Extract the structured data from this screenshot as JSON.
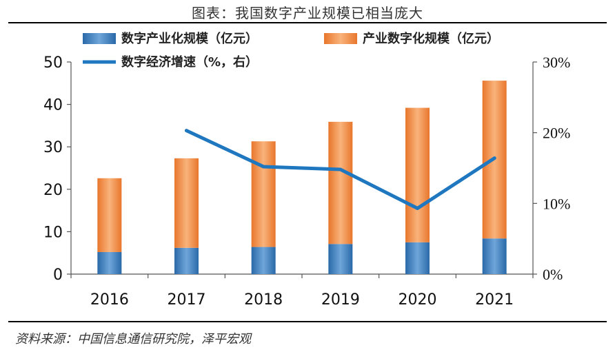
{
  "header": {
    "title": "图表：我国数字产业规模已相当庞大"
  },
  "footer": {
    "source": "资料来源：中国信息通信研究院，泽平宏观"
  },
  "colors": {
    "bar_bottom": "#2E75B6",
    "bar_top": "#ED7D31",
    "line": "#1F77C0"
  },
  "chart_data": {
    "type": "bar",
    "stacked": true,
    "categories": [
      "2016",
      "2017",
      "2018",
      "2019",
      "2020",
      "2021"
    ],
    "series": [
      {
        "name": "数字产业化规模（亿元）",
        "type": "bar",
        "axis": "left",
        "values": [
          5.2,
          6.2,
          6.4,
          7.1,
          7.5,
          8.4
        ]
      },
      {
        "name": "产业数字化规模（亿元）",
        "type": "bar",
        "axis": "left",
        "values": [
          17.4,
          21.1,
          24.9,
          28.8,
          31.7,
          37.2
        ]
      },
      {
        "name": "数字经济增速（%，右）",
        "type": "line",
        "axis": "right",
        "values": [
          null,
          20.3,
          15.2,
          14.8,
          9.3,
          16.4
        ]
      }
    ],
    "y_left": {
      "min": 0,
      "max": 50,
      "ticks": [
        "0",
        "10",
        "20",
        "30",
        "40",
        "50"
      ]
    },
    "y_right": {
      "min": 0,
      "max": 30,
      "ticks": [
        "0%",
        "10%",
        "20%",
        "30%"
      ]
    },
    "legend": "top",
    "grid": false
  }
}
